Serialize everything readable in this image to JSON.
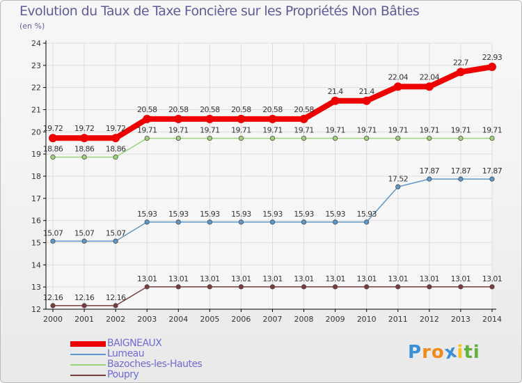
{
  "header": {
    "title": "Evolution du Taux de Taxe Foncière sur les Propriétés Non Bâties",
    "subtitle": "(en %)"
  },
  "logo": {
    "letters": [
      "P",
      "r",
      "o",
      "x",
      "i",
      "t",
      "i"
    ],
    "colors": [
      "#3b8fd6",
      "#f08a1c",
      "#f08a1c",
      "#3b8fd6",
      "#f3c21b",
      "#62b13f",
      "#62b13f"
    ]
  },
  "chart_data": {
    "type": "line",
    "title": "Evolution du Taux de Taxe Foncière sur les Propriétés Non Bâties",
    "ylabel": "(en %)",
    "xlabel": "",
    "ylim": [
      12,
      24
    ],
    "yticks": [
      12,
      13,
      14,
      15,
      16,
      17,
      18,
      19,
      20,
      21,
      22,
      23,
      24
    ],
    "grid": true,
    "legend_position": "bottom-left",
    "x": [
      "2000",
      "2001",
      "2002",
      "2003",
      "2004",
      "2005",
      "2006",
      "2007",
      "2008",
      "2009",
      "2010",
      "2011",
      "2012",
      "2013",
      "2014"
    ],
    "series": [
      {
        "name": "BAIGNEAUX",
        "color": "#ee0000",
        "values": [
          19.72,
          19.72,
          19.72,
          20.58,
          20.58,
          20.58,
          20.58,
          20.58,
          20.58,
          21.4,
          21.4,
          22.04,
          22.04,
          22.7,
          22.93
        ],
        "labels": [
          "19.72",
          "19.72",
          "19.72",
          "20.58",
          "20.58",
          "20.58",
          "20.58",
          "20.58",
          "20.58",
          "21.4",
          "21.4",
          "22.04",
          "22.04",
          "22.7",
          "22.93"
        ]
      },
      {
        "name": "Lumeau",
        "color": "#5d98c9",
        "values": [
          15.07,
          15.07,
          15.07,
          15.93,
          15.93,
          15.93,
          15.93,
          15.93,
          15.93,
          15.93,
          15.93,
          17.52,
          17.87,
          17.87,
          17.87
        ],
        "labels": [
          "15.07",
          "15.07",
          "15.07",
          "15.93",
          "15.93",
          "15.93",
          "15.93",
          "15.93",
          "15.93",
          "15.93",
          "15.93",
          "17.52",
          "17.87",
          "17.87",
          "17.87"
        ]
      },
      {
        "name": "Bazoches-les-Hautes",
        "color": "#9cd47c",
        "values": [
          18.86,
          18.86,
          18.86,
          19.71,
          19.71,
          19.71,
          19.71,
          19.71,
          19.71,
          19.71,
          19.71,
          19.71,
          19.71,
          19.71,
          19.71
        ],
        "labels": [
          "18.86",
          "18.86",
          "18.86",
          "19.71",
          "19.71",
          "19.71",
          "19.71",
          "19.71",
          "19.71",
          "19.71",
          "19.71",
          "19.71",
          "19.71",
          "19.71",
          "19.71"
        ]
      },
      {
        "name": "Poupry",
        "color": "#7a3b3b",
        "values": [
          12.16,
          12.16,
          12.16,
          13.01,
          13.01,
          13.01,
          13.01,
          13.01,
          13.01,
          13.01,
          13.01,
          13.01,
          13.01,
          13.01,
          13.01
        ],
        "labels": [
          "12.16",
          "12.16",
          "12.16",
          "13.01",
          "13.01",
          "13.01",
          "13.01",
          "13.01",
          "13.01",
          "13.01",
          "13.01",
          "13.01",
          "13.01",
          "13.01",
          "13.01"
        ]
      }
    ]
  }
}
